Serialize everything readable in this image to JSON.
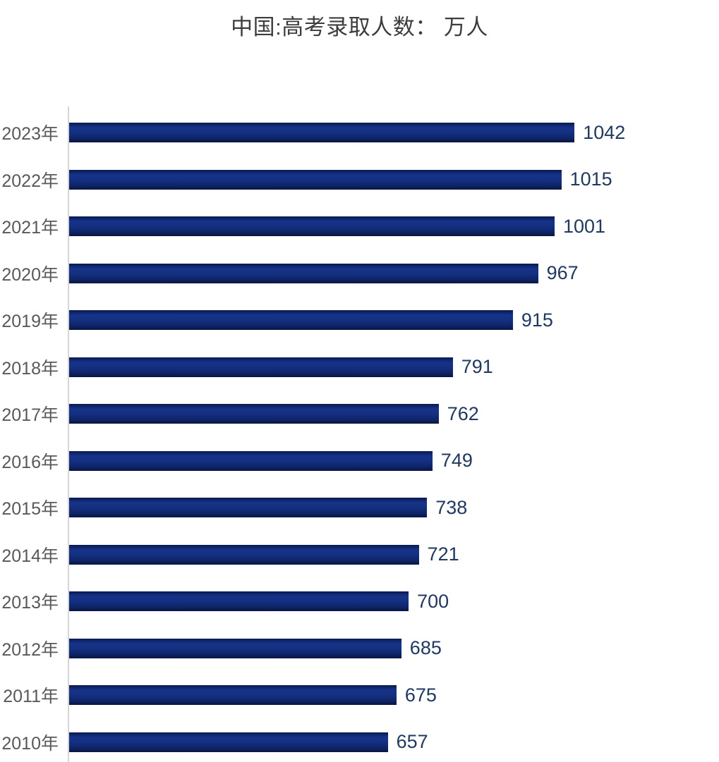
{
  "title": "中国:高考录取人数： 万人",
  "chart_data": {
    "type": "bar",
    "orientation": "horizontal",
    "title": "中国:高考录取人数： 万人",
    "unit": "万人",
    "categories": [
      "2023年",
      "2022年",
      "2021年",
      "2020年",
      "2019年",
      "2018年",
      "2017年",
      "2016年",
      "2015年",
      "2014年",
      "2013年",
      "2012年",
      "2011年",
      "2010年"
    ],
    "values": [
      1042,
      1015,
      1001,
      967,
      915,
      791,
      762,
      749,
      738,
      721,
      700,
      685,
      675,
      657
    ],
    "xlim": [
      0,
      1340
    ],
    "grid": false,
    "legend": false,
    "value_labels_shown": true,
    "colors": {
      "bar_gradient_stops": [
        "#0a1a4e",
        "#16338a",
        "#143081",
        "#0e2466",
        "#081540"
      ],
      "value_label": "#1f3864",
      "category_label": "#595959",
      "title": "#3d3d3d",
      "axis_line": "#d6d6d6",
      "background": "#ffffff"
    }
  }
}
